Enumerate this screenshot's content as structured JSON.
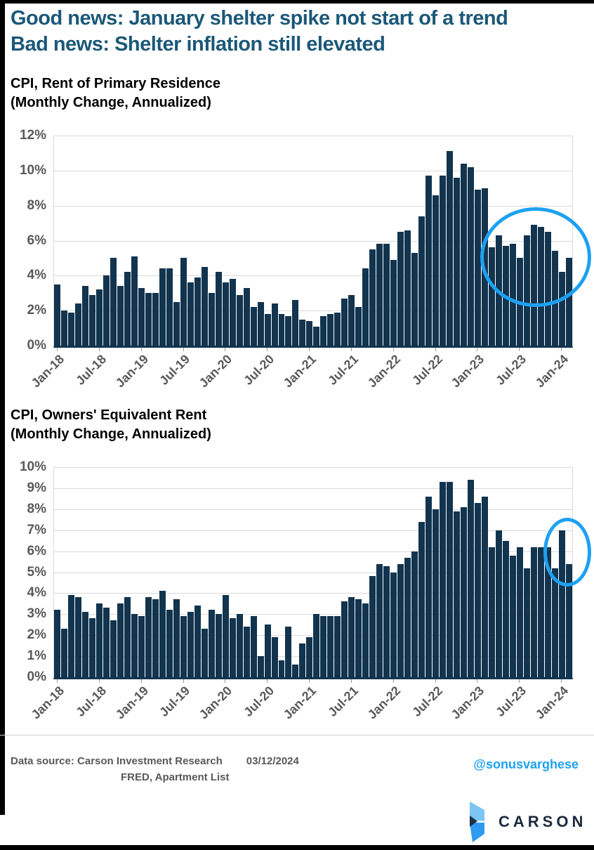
{
  "header": {
    "line1": "Good news: January shelter spike not start of a trend",
    "line2": "Bad news: Shelter inflation still elevated"
  },
  "chart_data": [
    {
      "type": "bar",
      "title": "CPI, Rent of Primary Residence",
      "subtitle": "(Monthly Change, Annualized)",
      "ylim": [
        0,
        12
      ],
      "y_tick_step": 2,
      "y_tick_labels": [
        "12%",
        "10%",
        "8%",
        "6%",
        "4%",
        "2%",
        "0%"
      ],
      "x_tick_labels": [
        "Jan-18",
        "Jul-18",
        "Jan-19",
        "Jul-19",
        "Jan-20",
        "Jul-20",
        "Jan-21",
        "Jul-21",
        "Jan-22",
        "Jul-22",
        "Jan-23",
        "Jul-23",
        "Jan-24"
      ],
      "x_tick_every": 6,
      "grid": true,
      "legend": "none",
      "categories": [
        "Jan-18",
        "Feb-18",
        "Mar-18",
        "Apr-18",
        "May-18",
        "Jun-18",
        "Jul-18",
        "Aug-18",
        "Sep-18",
        "Oct-18",
        "Nov-18",
        "Dec-18",
        "Jan-19",
        "Feb-19",
        "Mar-19",
        "Apr-19",
        "May-19",
        "Jun-19",
        "Jul-19",
        "Aug-19",
        "Sep-19",
        "Oct-19",
        "Nov-19",
        "Dec-19",
        "Jan-20",
        "Feb-20",
        "Mar-20",
        "Apr-20",
        "May-20",
        "Jun-20",
        "Jul-20",
        "Aug-20",
        "Sep-20",
        "Oct-20",
        "Nov-20",
        "Dec-20",
        "Jan-21",
        "Feb-21",
        "Mar-21",
        "Apr-21",
        "May-21",
        "Jun-21",
        "Jul-21",
        "Aug-21",
        "Sep-21",
        "Oct-21",
        "Nov-21",
        "Dec-21",
        "Jan-22",
        "Feb-22",
        "Mar-22",
        "Apr-22",
        "May-22",
        "Jun-22",
        "Jul-22",
        "Aug-22",
        "Sep-22",
        "Oct-22",
        "Nov-22",
        "Dec-22",
        "Jan-23",
        "Feb-23",
        "Mar-23",
        "Apr-23",
        "May-23",
        "Jun-23",
        "Jul-23",
        "Aug-23",
        "Sep-23",
        "Oct-23",
        "Nov-23",
        "Dec-23",
        "Jan-24",
        "Feb-24"
      ],
      "values": [
        3.5,
        2.0,
        1.9,
        2.4,
        3.4,
        2.9,
        3.2,
        4.0,
        5.0,
        3.4,
        4.2,
        5.1,
        3.3,
        3.0,
        3.0,
        4.4,
        4.4,
        2.5,
        5.0,
        3.6,
        3.9,
        4.5,
        3.0,
        4.2,
        3.6,
        3.8,
        2.9,
        3.3,
        2.2,
        2.5,
        1.8,
        2.4,
        1.8,
        1.7,
        2.6,
        1.5,
        1.4,
        1.1,
        1.7,
        1.8,
        1.9,
        2.7,
        2.9,
        2.2,
        4.4,
        5.5,
        5.8,
        5.8,
        4.9,
        6.5,
        6.6,
        5.3,
        7.4,
        9.7,
        8.6,
        9.7,
        11.1,
        9.6,
        10.4,
        10.2,
        8.9,
        9.0,
        5.6,
        6.3,
        5.7,
        5.8,
        5.0,
        6.3,
        6.9,
        6.8,
        6.5,
        5.4,
        4.2,
        5.0
      ],
      "annotation": "blue circle highlighting Jul-23 through Feb-24 bars"
    },
    {
      "type": "bar",
      "title": "CPI, Owners' Equivalent Rent",
      "subtitle": "(Monthly Change, Annualized)",
      "ylim": [
        0,
        10
      ],
      "y_tick_step": 1,
      "y_tick_labels": [
        "10%",
        "9%",
        "8%",
        "7%",
        "6%",
        "5%",
        "4%",
        "3%",
        "2%",
        "1%",
        "0%"
      ],
      "x_tick_labels": [
        "Jan-18",
        "Jul-18",
        "Jan-19",
        "Jul-19",
        "Jan-20",
        "Jul-20",
        "Jan-21",
        "Jul-21",
        "Jan-22",
        "Jul-22",
        "Jan-23",
        "Jul-23",
        "Jan-24"
      ],
      "x_tick_every": 6,
      "grid": true,
      "legend": "none",
      "categories": [
        "Jan-18",
        "Feb-18",
        "Mar-18",
        "Apr-18",
        "May-18",
        "Jun-18",
        "Jul-18",
        "Aug-18",
        "Sep-18",
        "Oct-18",
        "Nov-18",
        "Dec-18",
        "Jan-19",
        "Feb-19",
        "Mar-19",
        "Apr-19",
        "May-19",
        "Jun-19",
        "Jul-19",
        "Aug-19",
        "Sep-19",
        "Oct-19",
        "Nov-19",
        "Dec-19",
        "Jan-20",
        "Feb-20",
        "Mar-20",
        "Apr-20",
        "May-20",
        "Jun-20",
        "Jul-20",
        "Aug-20",
        "Sep-20",
        "Oct-20",
        "Nov-20",
        "Dec-20",
        "Jan-21",
        "Feb-21",
        "Mar-21",
        "Apr-21",
        "May-21",
        "Jun-21",
        "Jul-21",
        "Aug-21",
        "Sep-21",
        "Oct-21",
        "Nov-21",
        "Dec-21",
        "Jan-22",
        "Feb-22",
        "Mar-22",
        "Apr-22",
        "May-22",
        "Jun-22",
        "Jul-22",
        "Aug-22",
        "Sep-22",
        "Oct-22",
        "Nov-22",
        "Dec-22",
        "Jan-23",
        "Feb-23",
        "Mar-23",
        "Apr-23",
        "May-23",
        "Jun-23",
        "Jul-23",
        "Aug-23",
        "Sep-23",
        "Oct-23",
        "Nov-23",
        "Dec-23",
        "Jan-24",
        "Feb-24"
      ],
      "values": [
        3.2,
        2.3,
        3.9,
        3.8,
        3.1,
        2.8,
        3.5,
        3.3,
        2.7,
        3.5,
        3.8,
        3.0,
        2.9,
        3.8,
        3.7,
        4.1,
        3.2,
        3.7,
        2.9,
        3.1,
        3.4,
        2.3,
        3.2,
        3.0,
        3.9,
        2.8,
        3.0,
        2.4,
        2.9,
        1.0,
        2.5,
        1.9,
        0.8,
        2.4,
        0.6,
        1.6,
        1.9,
        3.0,
        2.9,
        2.9,
        2.9,
        3.6,
        3.8,
        3.7,
        3.5,
        4.8,
        5.4,
        5.3,
        5.0,
        5.4,
        5.7,
        6.0,
        7.4,
        8.6,
        8.0,
        9.3,
        9.3,
        7.9,
        8.1,
        9.4,
        8.3,
        8.6,
        6.2,
        7.0,
        6.5,
        5.8,
        6.2,
        5.2,
        6.2,
        6.2,
        6.2,
        5.2,
        7.0,
        5.4
      ],
      "annotation": "blue circle highlighting the Jan-24 spike and Feb-24 bar"
    }
  ],
  "footer": {
    "source_line1": "Data source: Carson Investment Research",
    "date": "03/12/2024",
    "source_line2": "FRED, Apartment List",
    "handle": "@sonusvarghese"
  },
  "logo": {
    "text": "CARSON"
  },
  "colors": {
    "bar": "#12344e",
    "headline": "#1b5878",
    "axis_text": "#595959",
    "gridline": "#d9d9d9",
    "annotation_circle": "#1da1f2",
    "handle": "#1da1f2",
    "logo_light_blue": "#7cc5f5",
    "logo_blue": "#2e9bf0",
    "logo_navy": "#1d3147"
  }
}
